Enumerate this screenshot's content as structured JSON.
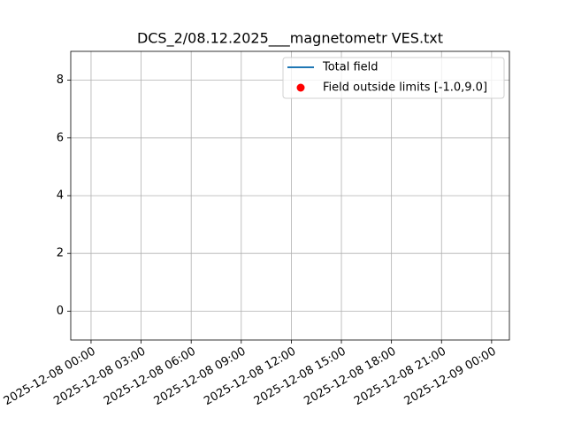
{
  "chart_data": {
    "type": "line",
    "title": "DCS_2/08.12.2025___magnetometr VES.txt",
    "x": [],
    "series": [
      {
        "name": "Total field",
        "color": "#1f77b4",
        "values": []
      },
      {
        "name": "Field outside limits [-1.0,9.0]",
        "color": "#ff0000",
        "type": "scatter",
        "values": []
      }
    ],
    "xlim": [
      "2025-12-07 22:47",
      "2025-12-09 01:04"
    ],
    "xticks": [
      "2025-12-08 00:00",
      "2025-12-08 03:00",
      "2025-12-08 06:00",
      "2025-12-08 09:00",
      "2025-12-08 12:00",
      "2025-12-08 15:00",
      "2025-12-08 18:00",
      "2025-12-08 21:00",
      "2025-12-09 00:00"
    ],
    "ylim": [
      -1,
      9
    ],
    "yticks": [
      0,
      2,
      4,
      6,
      8
    ],
    "grid": true,
    "legend": "upper right"
  }
}
